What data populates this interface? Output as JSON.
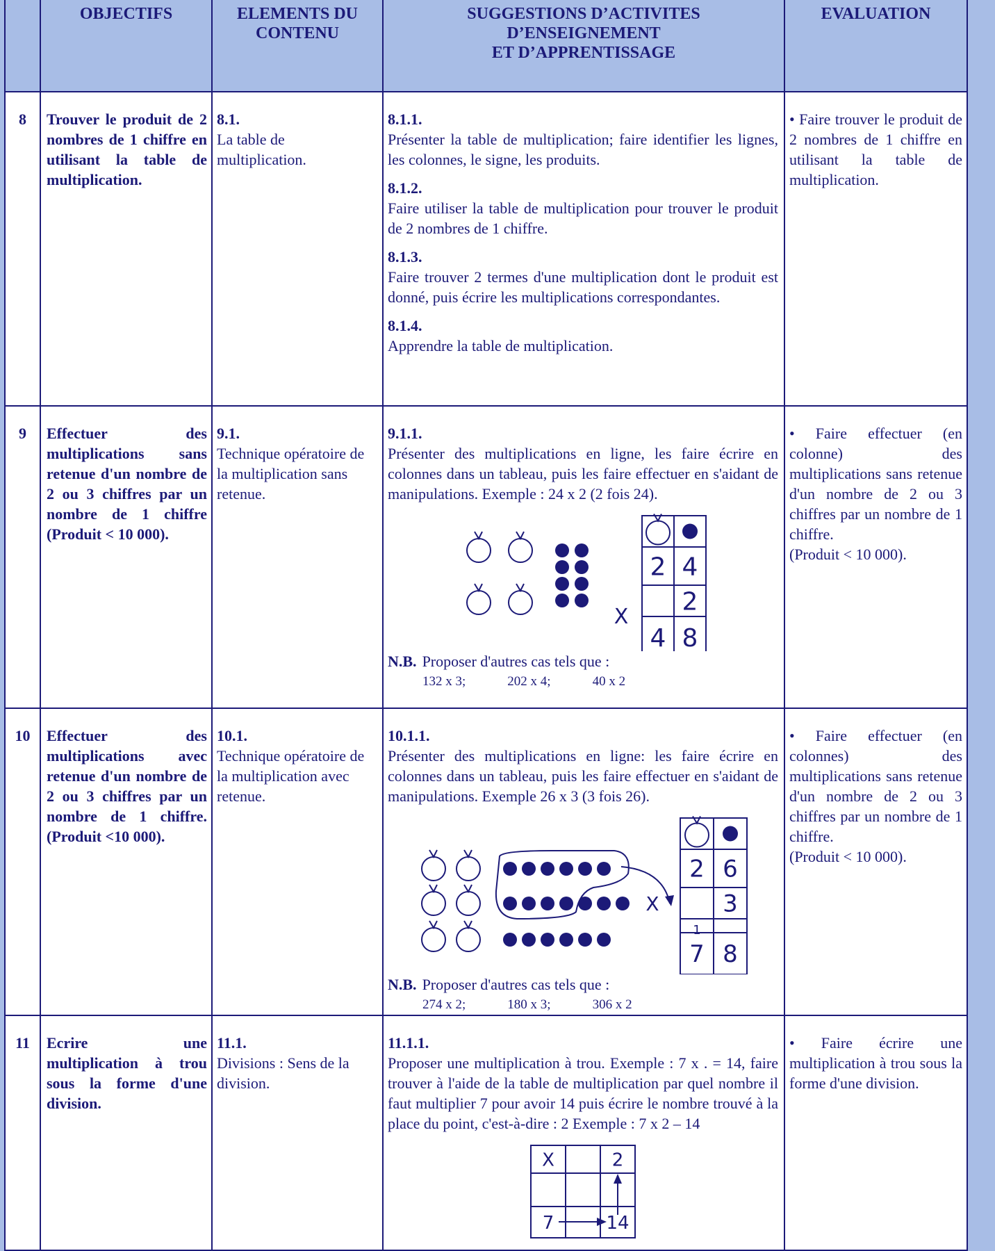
{
  "header": {
    "columns": [
      {
        "lines": [
          "OBJECTIFS"
        ]
      },
      {
        "lines": [
          "ELEMENTS DU",
          "CONTENU"
        ]
      },
      {
        "lines": [
          "SUGGESTIONS D’ACTIVITES",
          "D’ENSEIGNEMENT",
          "ET D’APPRENTISSAGE"
        ]
      },
      {
        "lines": [
          "EVALUATION"
        ]
      }
    ]
  },
  "rows": [
    {
      "number": "8",
      "objective": "Trouver le produit de 2 nombres de 1 chiffre en utilisant la table de multiplication.",
      "element": {
        "code": "8.1.",
        "text": "La table de multiplication."
      },
      "activities": [
        {
          "code": "8.1.1.",
          "text": "Présenter la table de multiplication; faire identifier les lignes, les colonnes, le signe, les produits."
        },
        {
          "code": "8.1.2.",
          "text": "Faire utiliser la table de multiplication pour trouver le produit de 2 nombres de 1 chiffre."
        },
        {
          "code": "8.1.3.",
          "text": "Faire trouver 2 termes d'une multiplication dont le produit est donné, puis écrire les multiplications correspondantes."
        },
        {
          "code": "8.1.4.",
          "text": "Apprendre la table de multiplication."
        }
      ],
      "evaluation": [
        "• Faire trouver le produit de 2 nombres de 1 chiffre en utilisant la table de multiplication."
      ]
    },
    {
      "number": "9",
      "objective": "Effectuer des multiplications sans retenue d'un nombre de 2 ou 3 chiffres par un nombre de 1 chiffre (Produit < 10 000).",
      "element": {
        "code": "9.1.",
        "text": "Technique opératoire de la multiplication sans retenue."
      },
      "activities": [
        {
          "code": "9.1.1.",
          "text": "Présenter des multiplications en ligne, les faire écrire en colonnes dans un tableau, puis les faire effectuer en s'aidant de manipulations. Exemple : 24 x 2 (2 fois 24).",
          "figure": {
            "sign": "X",
            "cells": [
              [
                "2",
                "4"
              ],
              [
                "",
                "2"
              ],
              [
                "4",
                "8"
              ]
            ]
          },
          "nb": {
            "label": "N.B.",
            "text": "Proposer d'autres cas tels que :",
            "examples": [
              "132 x 3;",
              "202 x 4;",
              "40 x 2"
            ]
          }
        }
      ],
      "evaluation": [
        "• Faire effectuer (en colonne) des multiplications sans retenue d'un nombre de 2 ou 3 chiffres par un nombre de 1 chiffre.",
        "(Produit < 10 000)."
      ]
    },
    {
      "number": "10",
      "objective": "Effectuer des multiplications avec retenue d'un nombre de 2 ou 3 chiffres par un nombre de 1 chiffre. (Produit <10 000).",
      "element": {
        "code": "10.1.",
        "text": "Technique opératoire de la multiplication avec retenue."
      },
      "activities": [
        {
          "code": "10.1.1.",
          "text": "Présenter des multiplications en ligne: les faire écrire en colonnes dans un tableau, puis les faire effectuer en s'aidant de manipulations. Exemple 26 x 3 (3 fois 26).",
          "figure": {
            "sign": "X",
            "cells": [
              [
                "2",
                "6"
              ],
              [
                "",
                "3"
              ],
              [
                "1",
                ""
              ],
              [
                "7",
                "8"
              ]
            ]
          },
          "nb": {
            "label": "N.B.",
            "text": "Proposer d'autres cas tels que :",
            "examples": [
              "274 x 2;",
              "180 x 3;",
              "306 x 2"
            ]
          }
        }
      ],
      "evaluation": [
        "• Faire effectuer (en colonnes) des multiplications sans retenue d'un nombre de 2 ou 3 chiffres par un nombre de 1 chiffre.",
        "(Produit < 10 000)."
      ]
    },
    {
      "number": "11",
      "objective": "Ecrire une multiplication à trou sous la forme d'une division.",
      "element": {
        "code": "11.1.",
        "text": "Divisions : Sens de la division."
      },
      "activities": [
        {
          "code": "11.1.1.",
          "text": "Proposer une multiplication à trou. Exemple : 7 x . = 14, faire trouver à l'aide de la table de multiplication par quel nombre il faut multiplier 7 pour avoir 14 puis écrire le nombre trouvé à la place du point, c'est-à-dire : 2 Exemple : 7 x 2 – 14",
          "figure": {
            "cells": [
              [
                "X",
                "",
                "2"
              ],
              [
                "",
                "",
                ""
              ],
              [
                "7",
                "",
                "14"
              ]
            ]
          }
        }
      ],
      "evaluation": [
        "• Faire écrire une multiplication à trou sous la forme d'une division."
      ]
    }
  ]
}
